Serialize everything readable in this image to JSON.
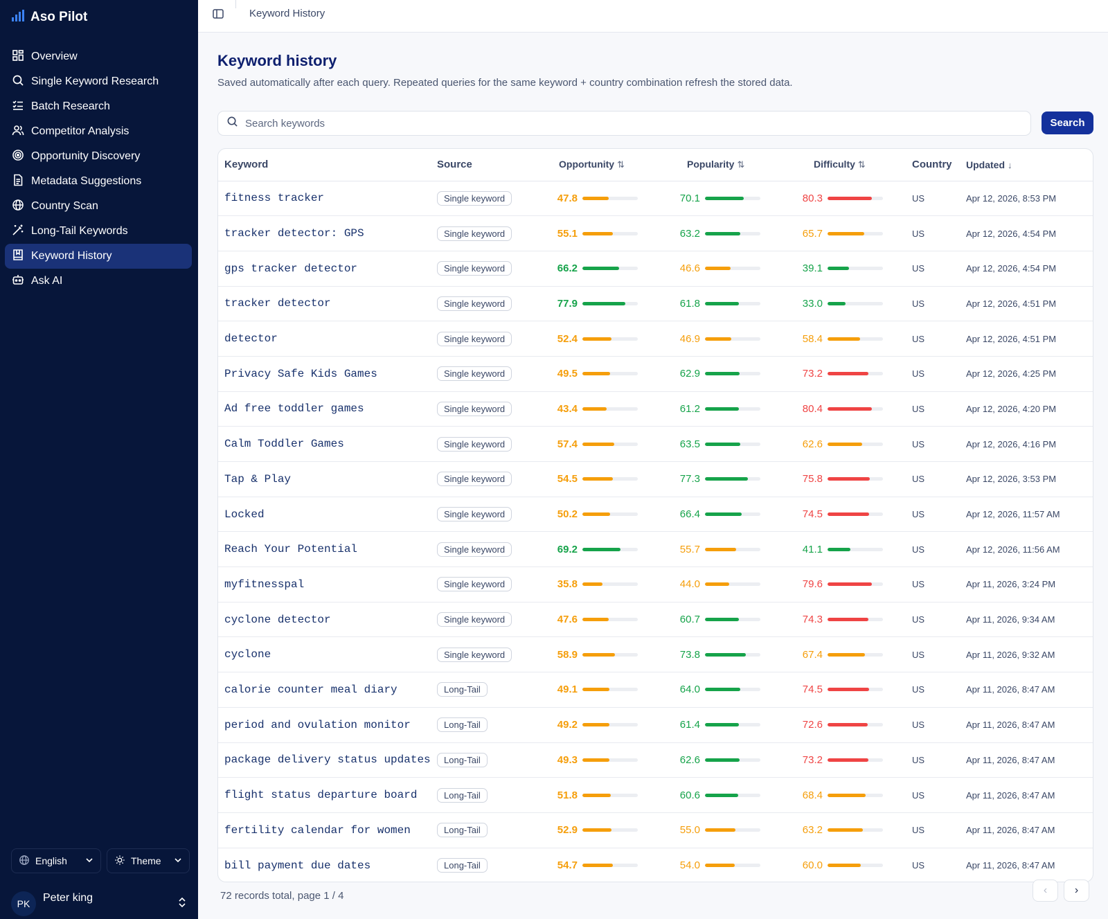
{
  "app": {
    "name": "Aso Pilot"
  },
  "nav": [
    {
      "label": "Overview",
      "icon": "dashboard-icon",
      "active": false
    },
    {
      "label": "Single Keyword Research",
      "icon": "search-icon",
      "active": false
    },
    {
      "label": "Batch Research",
      "icon": "list-check-icon",
      "active": false
    },
    {
      "label": "Competitor Analysis",
      "icon": "users-icon",
      "active": false
    },
    {
      "label": "Opportunity Discovery",
      "icon": "target-icon",
      "active": false
    },
    {
      "label": "Metadata Suggestions",
      "icon": "document-icon",
      "active": false
    },
    {
      "label": "Country Scan",
      "icon": "globe-icon",
      "active": false
    },
    {
      "label": "Long-Tail Keywords",
      "icon": "magic-wand-icon",
      "active": false
    },
    {
      "label": "Keyword History",
      "icon": "history-book-icon",
      "active": true
    },
    {
      "label": "Ask AI",
      "icon": "bot-icon",
      "active": false
    }
  ],
  "footer": {
    "language": "English",
    "theme": "Theme"
  },
  "user": {
    "initials": "PK",
    "name": "Peter king"
  },
  "topbar": {
    "breadcrumb": "Keyword History"
  },
  "page": {
    "title": "Keyword history",
    "subtitle": "Saved automatically after each query. Repeated queries for the same keyword + country combination refresh the stored data.",
    "search_placeholder": "Search keywords",
    "search_button": "Search"
  },
  "table": {
    "columns": {
      "keyword": "Keyword",
      "source": "Source",
      "opportunity": "Opportunity",
      "popularity": "Popularity",
      "difficulty": "Difficulty",
      "country": "Country",
      "updated": "Updated"
    },
    "rows": [
      {
        "keyword": "fitness tracker",
        "source": "Single keyword",
        "opportunity": "47.8",
        "popularity": "70.1",
        "difficulty": "80.3",
        "country": "US",
        "updated": "Apr 12, 2026, 8:53 PM"
      },
      {
        "keyword": "tracker detector: GPS",
        "source": "Single keyword",
        "opportunity": "55.1",
        "popularity": "63.2",
        "difficulty": "65.7",
        "country": "US",
        "updated": "Apr 12, 2026, 4:54 PM"
      },
      {
        "keyword": "gps tracker detector",
        "source": "Single keyword",
        "opportunity": "66.2",
        "popularity": "46.6",
        "difficulty": "39.1",
        "country": "US",
        "updated": "Apr 12, 2026, 4:54 PM"
      },
      {
        "keyword": "tracker detector",
        "source": "Single keyword",
        "opportunity": "77.9",
        "popularity": "61.8",
        "difficulty": "33.0",
        "country": "US",
        "updated": "Apr 12, 2026, 4:51 PM"
      },
      {
        "keyword": "detector",
        "source": "Single keyword",
        "opportunity": "52.4",
        "popularity": "46.9",
        "difficulty": "58.4",
        "country": "US",
        "updated": "Apr 12, 2026, 4:51 PM"
      },
      {
        "keyword": "Privacy Safe Kids Games",
        "source": "Single keyword",
        "opportunity": "49.5",
        "popularity": "62.9",
        "difficulty": "73.2",
        "country": "US",
        "updated": "Apr 12, 2026, 4:25 PM"
      },
      {
        "keyword": "Ad free toddler games",
        "source": "Single keyword",
        "opportunity": "43.4",
        "popularity": "61.2",
        "difficulty": "80.4",
        "country": "US",
        "updated": "Apr 12, 2026, 4:20 PM"
      },
      {
        "keyword": "Calm Toddler Games",
        "source": "Single keyword",
        "opportunity": "57.4",
        "popularity": "63.5",
        "difficulty": "62.6",
        "country": "US",
        "updated": "Apr 12, 2026, 4:16 PM"
      },
      {
        "keyword": "Tap & Play",
        "source": "Single keyword",
        "opportunity": "54.5",
        "popularity": "77.3",
        "difficulty": "75.8",
        "country": "US",
        "updated": "Apr 12, 2026, 3:53 PM"
      },
      {
        "keyword": "Locked",
        "source": "Single keyword",
        "opportunity": "50.2",
        "popularity": "66.4",
        "difficulty": "74.5",
        "country": "US",
        "updated": "Apr 12, 2026, 11:57 AM"
      },
      {
        "keyword": "Reach Your Potential",
        "source": "Single keyword",
        "opportunity": "69.2",
        "popularity": "55.7",
        "difficulty": "41.1",
        "country": "US",
        "updated": "Apr 12, 2026, 11:56 AM"
      },
      {
        "keyword": "myfitnesspal",
        "source": "Single keyword",
        "opportunity": "35.8",
        "popularity": "44.0",
        "difficulty": "79.6",
        "country": "US",
        "updated": "Apr 11, 2026, 3:24 PM"
      },
      {
        "keyword": "cyclone detector",
        "source": "Single keyword",
        "opportunity": "47.6",
        "popularity": "60.7",
        "difficulty": "74.3",
        "country": "US",
        "updated": "Apr 11, 2026, 9:34 AM"
      },
      {
        "keyword": "cyclone",
        "source": "Single keyword",
        "opportunity": "58.9",
        "popularity": "73.8",
        "difficulty": "67.4",
        "country": "US",
        "updated": "Apr 11, 2026, 9:32 AM"
      },
      {
        "keyword": "calorie counter meal diary",
        "source": "Long-Tail",
        "opportunity": "49.1",
        "popularity": "64.0",
        "difficulty": "74.5",
        "country": "US",
        "updated": "Apr 11, 2026, 8:47 AM"
      },
      {
        "keyword": "period and ovulation monitor",
        "source": "Long-Tail",
        "opportunity": "49.2",
        "popularity": "61.4",
        "difficulty": "72.6",
        "country": "US",
        "updated": "Apr 11, 2026, 8:47 AM"
      },
      {
        "keyword": "package delivery status updates",
        "source": "Long-Tail",
        "opportunity": "49.3",
        "popularity": "62.6",
        "difficulty": "73.2",
        "country": "US",
        "updated": "Apr 11, 2026, 8:47 AM"
      },
      {
        "keyword": "flight status departure board",
        "source": "Long-Tail",
        "opportunity": "51.8",
        "popularity": "60.6",
        "difficulty": "68.4",
        "country": "US",
        "updated": "Apr 11, 2026, 8:47 AM"
      },
      {
        "keyword": "fertility calendar for women",
        "source": "Long-Tail",
        "opportunity": "52.9",
        "popularity": "55.0",
        "difficulty": "63.2",
        "country": "US",
        "updated": "Apr 11, 2026, 8:47 AM"
      },
      {
        "keyword": "bill payment due dates",
        "source": "Long-Tail",
        "opportunity": "54.7",
        "popularity": "54.0",
        "difficulty": "60.0",
        "country": "US",
        "updated": "Apr 11, 2026, 8:47 AM"
      }
    ]
  },
  "pagination": {
    "summary": "72 records total, page 1 / 4",
    "prev": "‹",
    "next": "›"
  },
  "colors": {
    "sidebar_bg": "#07163a",
    "active_nav": "#1a3278",
    "accent": "#14319c",
    "green": "#16a34a",
    "orange": "#f59e0b",
    "red": "#ef4444"
  }
}
